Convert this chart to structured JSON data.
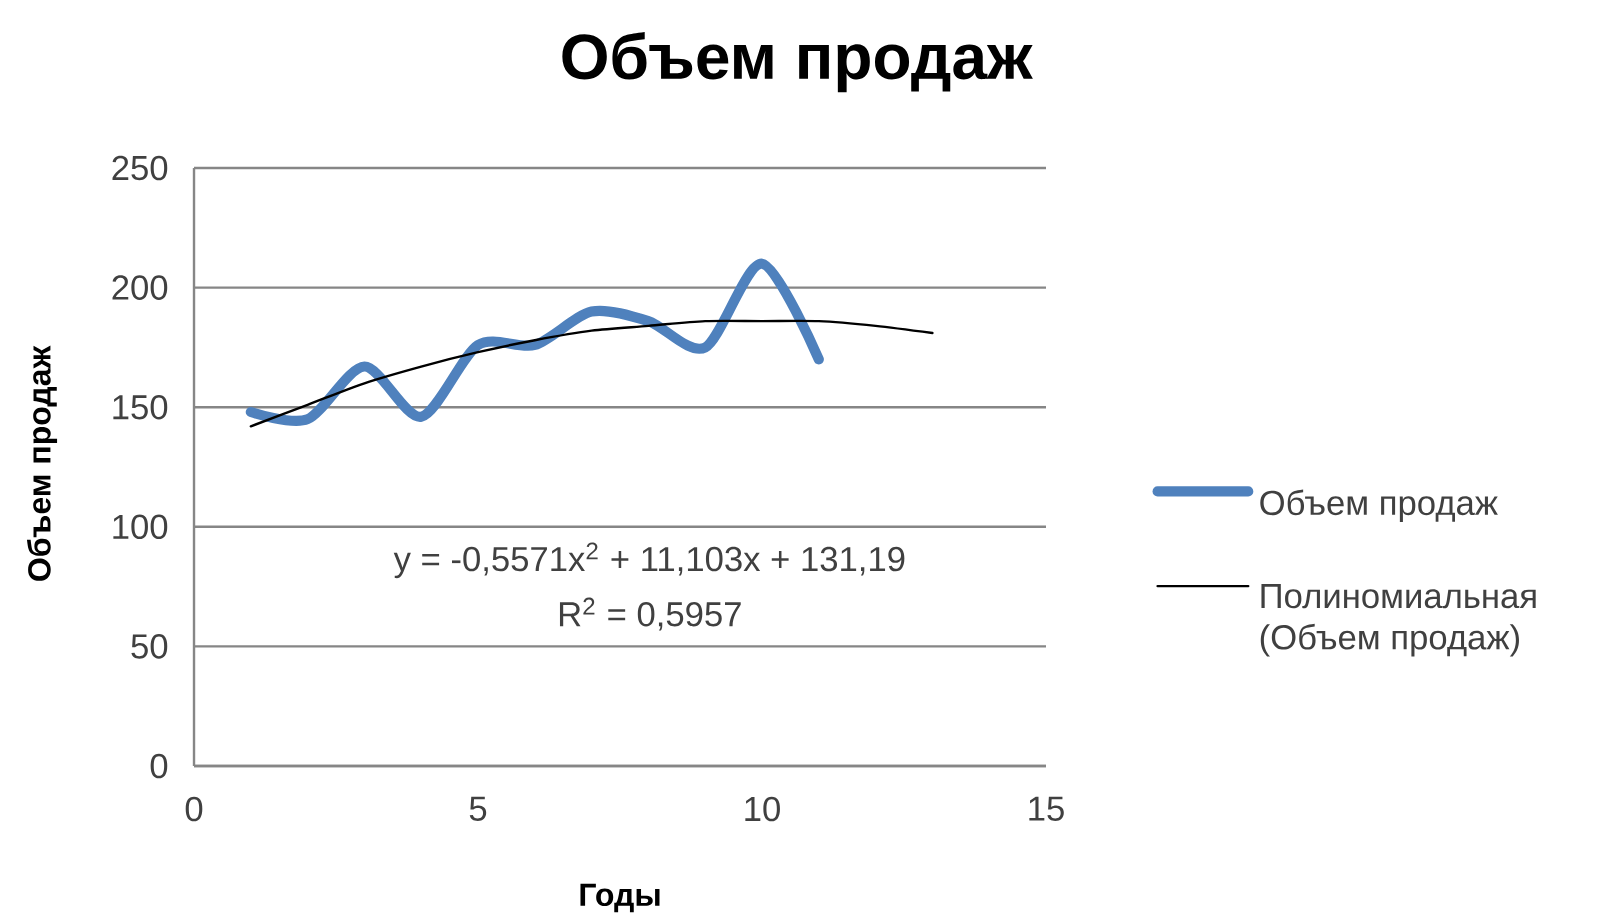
{
  "chart_data": {
    "type": "line",
    "title": "Объем продаж",
    "xlabel": "Годы",
    "ylabel": "Объем продаж",
    "series": [
      {
        "name": "Объем продаж",
        "color": "#4f81bd",
        "x": [
          1,
          2,
          3,
          4,
          5,
          6,
          7,
          8,
          9,
          10,
          11
        ],
        "values": [
          148,
          145,
          167,
          146,
          176,
          176,
          190,
          186,
          175,
          210,
          170
        ]
      },
      {
        "name": "Полиномиальная (Объем продаж)",
        "color": "#000000",
        "x": [
          1,
          2,
          3,
          4,
          5,
          6,
          7,
          8,
          9,
          10,
          11,
          12,
          13
        ],
        "values": [
          142,
          151,
          160,
          167,
          173,
          178,
          182,
          184,
          186,
          186,
          186,
          184,
          181
        ]
      }
    ],
    "annotations": [
      "y = -0,5571x$^{2}$ + 11,103x + 131,19",
      "R$^{2}$ = 0,5957"
    ],
    "xlim": [
      0,
      15
    ],
    "ylim": [
      0,
      250
    ],
    "xticks": [
      0,
      5,
      10,
      15
    ],
    "yticks": [
      0,
      50,
      100,
      150,
      200,
      250
    ],
    "grid": "y",
    "legend": "right",
    "marker": "none",
    "line_style": "solid"
  }
}
